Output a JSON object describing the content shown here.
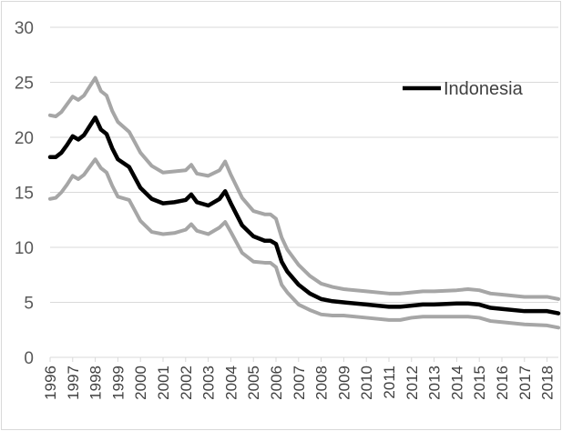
{
  "chart_data": {
    "type": "line",
    "title": "",
    "xlabel": "",
    "ylabel": "",
    "ylim": [
      0,
      30
    ],
    "xlim": [
      1996,
      2018.5
    ],
    "y_ticks": [
      "0",
      "5",
      "10",
      "15",
      "20",
      "25",
      "30"
    ],
    "x_ticks": [
      "1996",
      "1997",
      "1998",
      "1999",
      "2000",
      "2001",
      "2002",
      "2003",
      "2004",
      "2005",
      "2006",
      "2007",
      "2008",
      "2009",
      "2010",
      "2011",
      "2012",
      "2013",
      "2014",
      "2015",
      "2016",
      "2017",
      "2018"
    ],
    "grid": "horizontal",
    "legend": {
      "position": "top-right",
      "label": "Indonesia"
    },
    "colors": {
      "series": "#000000",
      "band": "#a6a6a6",
      "grid": "#d9d9d9"
    },
    "series": [
      {
        "name": "Indonesia",
        "role": "point-estimate",
        "x": [
          1996,
          1996.25,
          1996.5,
          1996.75,
          1997,
          1997.25,
          1997.5,
          1997.75,
          1998,
          1998.25,
          1998.5,
          1998.75,
          1999,
          1999.5,
          2000,
          2000.5,
          2001,
          2001.5,
          2002,
          2002.25,
          2002.5,
          2003,
          2003.5,
          2003.75,
          2004,
          2004.5,
          2005,
          2005.5,
          2005.75,
          2006,
          2006.25,
          2006.5,
          2007,
          2007.5,
          2008,
          2008.5,
          2009,
          2010,
          2011,
          2011.5,
          2012,
          2012.5,
          2013,
          2014,
          2014.5,
          2015,
          2015.5,
          2016,
          2017,
          2018,
          2018.5
        ],
        "values": [
          18.2,
          18.2,
          18.6,
          19.3,
          20.1,
          19.8,
          20.2,
          21.0,
          21.8,
          20.7,
          20.3,
          19.0,
          18.0,
          17.3,
          15.4,
          14.4,
          14.0,
          14.1,
          14.3,
          14.8,
          14.1,
          13.8,
          14.4,
          15.1,
          14.0,
          12.0,
          11.0,
          10.6,
          10.6,
          10.3,
          8.7,
          7.8,
          6.6,
          5.8,
          5.3,
          5.1,
          5.0,
          4.8,
          4.6,
          4.6,
          4.7,
          4.8,
          4.8,
          4.9,
          4.9,
          4.8,
          4.5,
          4.4,
          4.2,
          4.2,
          4.0
        ]
      },
      {
        "name": "",
        "role": "upper-bound",
        "x": [
          1996,
          1996.25,
          1996.5,
          1996.75,
          1997,
          1997.25,
          1997.5,
          1997.75,
          1998,
          1998.25,
          1998.5,
          1998.75,
          1999,
          1999.5,
          2000,
          2000.5,
          2001,
          2001.5,
          2002,
          2002.25,
          2002.5,
          2003,
          2003.5,
          2003.75,
          2004,
          2004.5,
          2005,
          2005.5,
          2005.75,
          2006,
          2006.25,
          2006.5,
          2007,
          2007.5,
          2008,
          2008.5,
          2009,
          2010,
          2011,
          2011.5,
          2012,
          2012.5,
          2013,
          2014,
          2014.5,
          2015,
          2015.5,
          2016,
          2017,
          2018,
          2018.5
        ],
        "values": [
          22.0,
          21.9,
          22.3,
          23.0,
          23.7,
          23.4,
          23.8,
          24.6,
          25.4,
          24.2,
          23.8,
          22.4,
          21.4,
          20.5,
          18.6,
          17.4,
          16.8,
          16.9,
          17.0,
          17.5,
          16.7,
          16.5,
          17.0,
          17.8,
          16.6,
          14.5,
          13.3,
          13.0,
          13.0,
          12.6,
          10.9,
          9.8,
          8.4,
          7.4,
          6.7,
          6.4,
          6.2,
          6.0,
          5.8,
          5.8,
          5.9,
          6.0,
          6.0,
          6.1,
          6.2,
          6.1,
          5.8,
          5.7,
          5.5,
          5.5,
          5.3
        ]
      },
      {
        "name": "",
        "role": "lower-bound",
        "x": [
          1996,
          1996.25,
          1996.5,
          1996.75,
          1997,
          1997.25,
          1997.5,
          1997.75,
          1998,
          1998.25,
          1998.5,
          1998.75,
          1999,
          1999.5,
          2000,
          2000.5,
          2001,
          2001.5,
          2002,
          2002.25,
          2002.5,
          2003,
          2003.5,
          2003.75,
          2004,
          2004.5,
          2005,
          2005.5,
          2005.75,
          2006,
          2006.25,
          2006.5,
          2007,
          2007.5,
          2008,
          2008.5,
          2009,
          2010,
          2011,
          2011.5,
          2012,
          2012.5,
          2013,
          2014,
          2014.5,
          2015,
          2015.5,
          2016,
          2017,
          2018,
          2018.5
        ],
        "values": [
          14.4,
          14.5,
          15.0,
          15.7,
          16.5,
          16.2,
          16.6,
          17.3,
          18.0,
          17.2,
          16.8,
          15.6,
          14.6,
          14.3,
          12.4,
          11.4,
          11.2,
          11.3,
          11.6,
          12.1,
          11.5,
          11.2,
          11.8,
          12.3,
          11.4,
          9.5,
          8.7,
          8.6,
          8.6,
          8.2,
          6.6,
          5.9,
          4.8,
          4.3,
          3.9,
          3.8,
          3.8,
          3.6,
          3.4,
          3.4,
          3.6,
          3.7,
          3.7,
          3.7,
          3.7,
          3.6,
          3.3,
          3.2,
          3.0,
          2.9,
          2.7
        ]
      }
    ]
  }
}
